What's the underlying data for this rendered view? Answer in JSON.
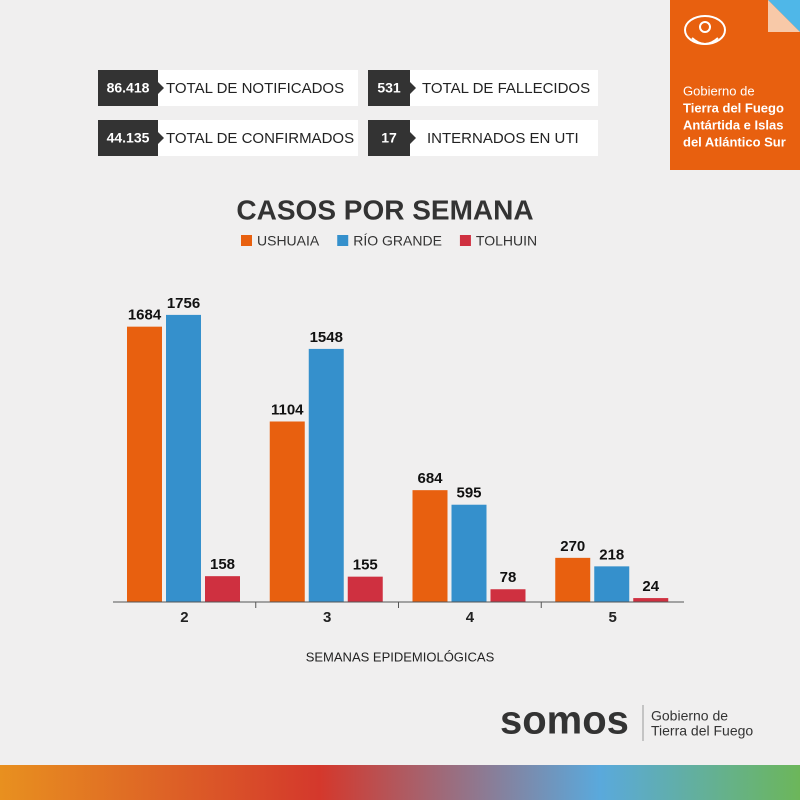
{
  "header": {
    "line1": "Gobierno de",
    "line2": "Tierra del Fuego",
    "line3": "Antártida e Islas",
    "line4": "del Atlántico Sur"
  },
  "stats": [
    {
      "value": "86.418",
      "label": "TOTAL DE NOTIFICADOS"
    },
    {
      "value": "531",
      "label": "TOTAL DE FALLECIDOS"
    },
    {
      "value": "44.135",
      "label": "TOTAL DE CONFIRMADOS"
    },
    {
      "value": "17",
      "label": "INTERNADOS EN UTI"
    }
  ],
  "chart_data": {
    "type": "bar",
    "title": "CASOS POR SEMANA",
    "x_label": "SEMANAS EPIDEMIOLÓGICAS",
    "categories": [
      "2",
      "3",
      "4",
      "5"
    ],
    "series": [
      {
        "name": "USHUAIA",
        "color": "#e8600f",
        "values": [
          1684,
          1104,
          684,
          270
        ]
      },
      {
        "name": "RÍO GRANDE",
        "color": "#3590cc",
        "values": [
          1756,
          1548,
          595,
          218
        ]
      },
      {
        "name": "TOLHUIN",
        "color": "#cf3040",
        "values": [
          158,
          155,
          78,
          24
        ]
      }
    ],
    "ylim": [
      0,
      2000
    ]
  },
  "footer": {
    "brand": "somos",
    "line1": "Gobierno de",
    "line2": "Tierra del Fuego"
  }
}
